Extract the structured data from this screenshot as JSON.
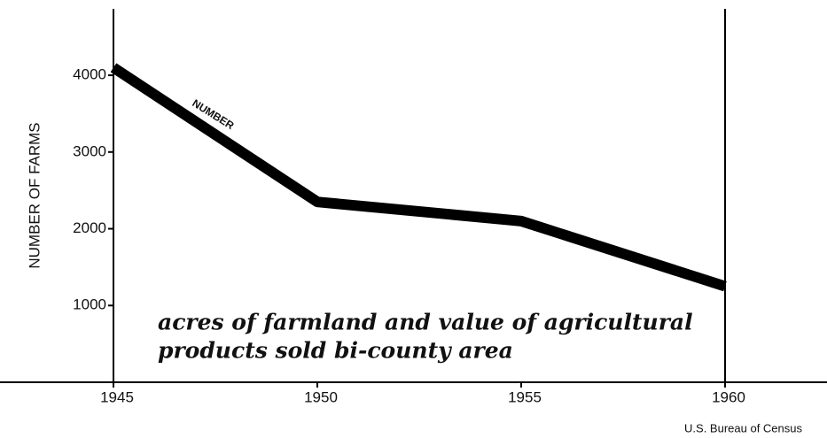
{
  "chart_data": {
    "type": "line",
    "y_label": "NUMBER OF FARMS",
    "annotation": "NUMBER",
    "caption": [
      "acres of farmland and value of agricultural",
      "products sold bi-county area"
    ],
    "source": "U.S. Bureau of Census",
    "x": [
      1945,
      1950,
      1955,
      1960
    ],
    "series": [
      {
        "name": "NUMBER",
        "color": "#000000",
        "values": [
          4100,
          2350,
          2100,
          1250
        ]
      }
    ],
    "xlim": [
      1945,
      1962.5
    ],
    "xticks": [
      1945,
      1950,
      1955,
      1960
    ],
    "ylim": [
      0,
      4900
    ],
    "yticks": [
      1000,
      2000,
      3000,
      4000
    ]
  }
}
